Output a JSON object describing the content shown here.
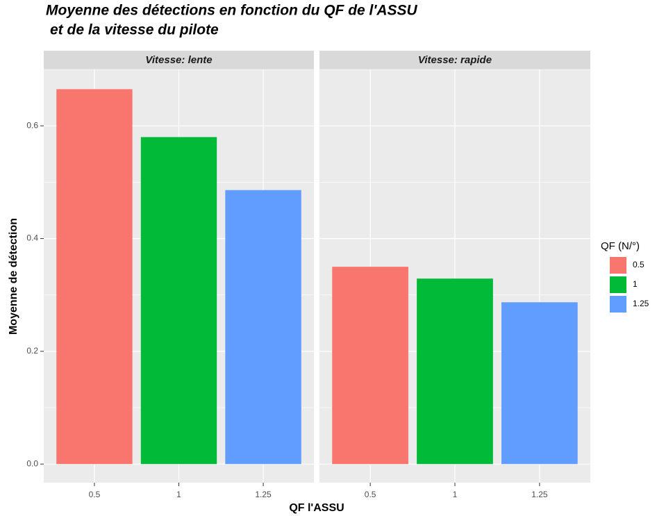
{
  "chart_data": {
    "type": "bar",
    "title": [
      "Moyenne des détections en fonction du QF de l'ASSU",
      "et de la vitesse du pilote"
    ],
    "x_label": "QF l'ASSU",
    "y_label": "Moyenne de détection",
    "legend_title": "QF (N/°)",
    "categories": [
      "0.5",
      "1",
      "1.25"
    ],
    "colors": [
      "#f8766d",
      "#00ba38",
      "#619cff"
    ],
    "facets": [
      {
        "name": "Vitesse: lente",
        "values": [
          0.665,
          0.58,
          0.486
        ]
      },
      {
        "name": "Vitesse: rapide",
        "values": [
          0.35,
          0.329,
          0.287
        ]
      }
    ],
    "ylim": [
      -0.033,
      0.7
    ],
    "yticks": [
      {
        "value": 0,
        "label": "0.0"
      },
      0.2,
      0.4,
      0.6
    ],
    "grid": true,
    "legend": "right"
  }
}
